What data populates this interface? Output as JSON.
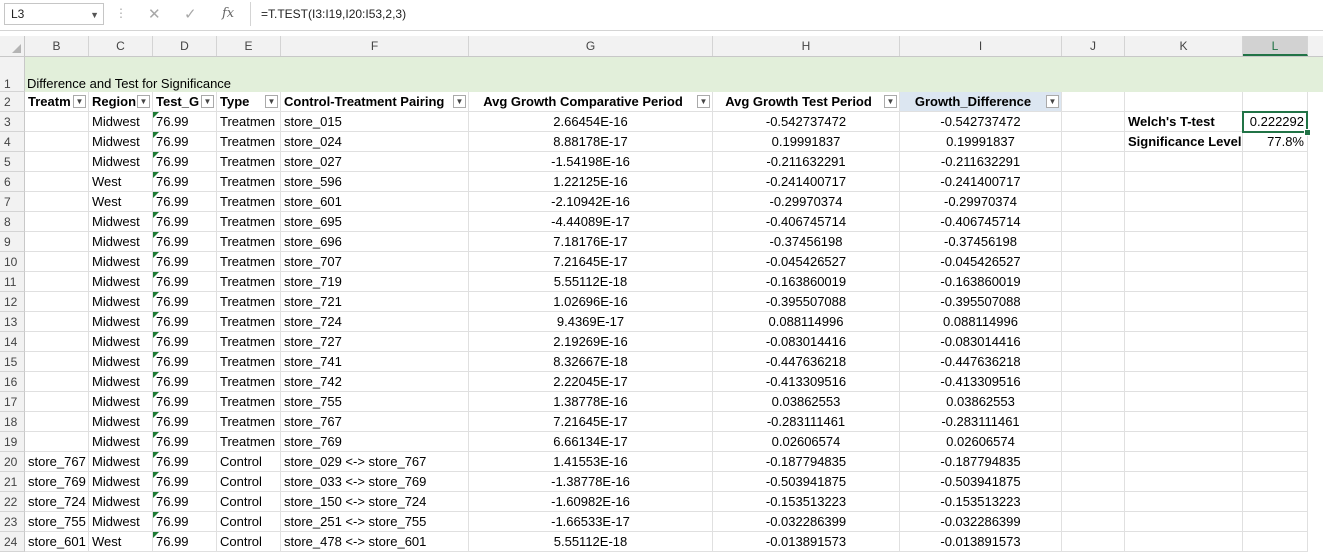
{
  "namebox": "L3",
  "formula": "=T.TEST(I3:I19,I20:I53,2,3)",
  "fx_label": "fx",
  "columns": [
    "B",
    "C",
    "D",
    "E",
    "F",
    "G",
    "H",
    "I",
    "J",
    "K",
    "L"
  ],
  "title": "Difference and Test for Significance",
  "headers": {
    "B": "Treatm",
    "C": "Region",
    "D": "Test_G",
    "E": "Type",
    "F": "Control-Treatment Pairing",
    "G": "Avg Growth Comparative Period",
    "H": "Avg Growth Test Period",
    "I": "Growth_Difference"
  },
  "stats": {
    "ttest_label": "Welch's T-test",
    "ttest_value": "0.222292",
    "sig_label": "Significance Level",
    "sig_value": "77.8%"
  },
  "rows": [
    {
      "n": "3",
      "B": "",
      "C": "Midwest",
      "D": "76.99",
      "E": "Treatmen",
      "F": "store_015",
      "G": "2.66454E-16",
      "H": "-0.542737472",
      "I": "-0.542737472"
    },
    {
      "n": "4",
      "B": "",
      "C": "Midwest",
      "D": "76.99",
      "E": "Treatmen",
      "F": "store_024",
      "G": "8.88178E-17",
      "H": "0.19991837",
      "I": "0.19991837"
    },
    {
      "n": "5",
      "B": "",
      "C": "Midwest",
      "D": "76.99",
      "E": "Treatmen",
      "F": "store_027",
      "G": "-1.54198E-16",
      "H": "-0.211632291",
      "I": "-0.211632291"
    },
    {
      "n": "6",
      "B": "",
      "C": "West",
      "D": "76.99",
      "E": "Treatmen",
      "F": "store_596",
      "G": "1.22125E-16",
      "H": "-0.241400717",
      "I": "-0.241400717"
    },
    {
      "n": "7",
      "B": "",
      "C": "West",
      "D": "76.99",
      "E": "Treatmen",
      "F": "store_601",
      "G": "-2.10942E-16",
      "H": "-0.29970374",
      "I": "-0.29970374"
    },
    {
      "n": "8",
      "B": "",
      "C": "Midwest",
      "D": "76.99",
      "E": "Treatmen",
      "F": "store_695",
      "G": "-4.44089E-17",
      "H": "-0.406745714",
      "I": "-0.406745714"
    },
    {
      "n": "9",
      "B": "",
      "C": "Midwest",
      "D": "76.99",
      "E": "Treatmen",
      "F": "store_696",
      "G": "7.18176E-17",
      "H": "-0.37456198",
      "I": "-0.37456198"
    },
    {
      "n": "10",
      "B": "",
      "C": "Midwest",
      "D": "76.99",
      "E": "Treatmen",
      "F": "store_707",
      "G": "7.21645E-17",
      "H": "-0.045426527",
      "I": "-0.045426527"
    },
    {
      "n": "11",
      "B": "",
      "C": "Midwest",
      "D": "76.99",
      "E": "Treatmen",
      "F": "store_719",
      "G": "5.55112E-18",
      "H": "-0.163860019",
      "I": "-0.163860019"
    },
    {
      "n": "12",
      "B": "",
      "C": "Midwest",
      "D": "76.99",
      "E": "Treatmen",
      "F": "store_721",
      "G": "1.02696E-16",
      "H": "-0.395507088",
      "I": "-0.395507088"
    },
    {
      "n": "13",
      "B": "",
      "C": "Midwest",
      "D": "76.99",
      "E": "Treatmen",
      "F": "store_724",
      "G": "9.4369E-17",
      "H": "0.088114996",
      "I": "0.088114996"
    },
    {
      "n": "14",
      "B": "",
      "C": "Midwest",
      "D": "76.99",
      "E": "Treatmen",
      "F": "store_727",
      "G": "2.19269E-16",
      "H": "-0.083014416",
      "I": "-0.083014416"
    },
    {
      "n": "15",
      "B": "",
      "C": "Midwest",
      "D": "76.99",
      "E": "Treatmen",
      "F": "store_741",
      "G": "8.32667E-18",
      "H": "-0.447636218",
      "I": "-0.447636218"
    },
    {
      "n": "16",
      "B": "",
      "C": "Midwest",
      "D": "76.99",
      "E": "Treatmen",
      "F": "store_742",
      "G": "2.22045E-17",
      "H": "-0.413309516",
      "I": "-0.413309516"
    },
    {
      "n": "17",
      "B": "",
      "C": "Midwest",
      "D": "76.99",
      "E": "Treatmen",
      "F": "store_755",
      "G": "1.38778E-16",
      "H": "0.03862553",
      "I": "0.03862553"
    },
    {
      "n": "18",
      "B": "",
      "C": "Midwest",
      "D": "76.99",
      "E": "Treatmen",
      "F": "store_767",
      "G": "7.21645E-17",
      "H": "-0.283111461",
      "I": "-0.283111461"
    },
    {
      "n": "19",
      "B": "",
      "C": "Midwest",
      "D": "76.99",
      "E": "Treatmen",
      "F": "store_769",
      "G": "6.66134E-17",
      "H": "0.02606574",
      "I": "0.02606574"
    },
    {
      "n": "20",
      "B": "store_767",
      "C": "Midwest",
      "D": "76.99",
      "E": "Control",
      "F": "store_029 <-> store_767",
      "G": "1.41553E-16",
      "H": "-0.187794835",
      "I": "-0.187794835"
    },
    {
      "n": "21",
      "B": "store_769",
      "C": "Midwest",
      "D": "76.99",
      "E": "Control",
      "F": "store_033 <-> store_769",
      "G": "-1.38778E-16",
      "H": "-0.503941875",
      "I": "-0.503941875"
    },
    {
      "n": "22",
      "B": "store_724",
      "C": "Midwest",
      "D": "76.99",
      "E": "Control",
      "F": "store_150 <-> store_724",
      "G": "-1.60982E-16",
      "H": "-0.153513223",
      "I": "-0.153513223"
    },
    {
      "n": "23",
      "B": "store_755",
      "C": "Midwest",
      "D": "76.99",
      "E": "Control",
      "F": "store_251 <-> store_755",
      "G": "-1.66533E-17",
      "H": "-0.032286399",
      "I": "-0.032286399"
    },
    {
      "n": "24",
      "B": "store_601",
      "C": "West",
      "D": "76.99",
      "E": "Control",
      "F": "store_478 <-> store_601",
      "G": "5.55112E-18",
      "H": "-0.013891573",
      "I": "-0.013891573"
    }
  ]
}
